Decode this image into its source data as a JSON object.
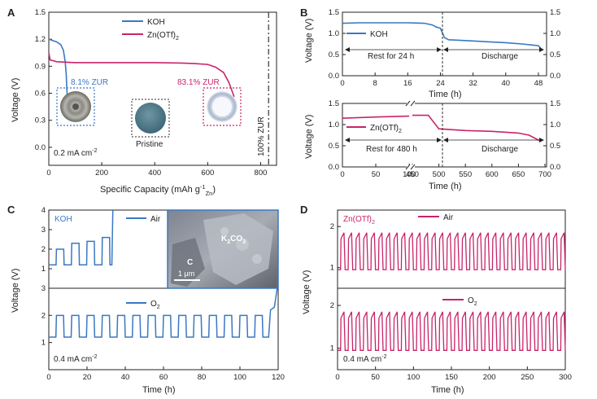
{
  "panels": {
    "a": "A",
    "b": "B",
    "c": "C",
    "d": "D"
  },
  "colors": {
    "koh": "#3a78c2",
    "zn": "#c8246a",
    "axis": "#222222"
  },
  "panel_a": {
    "legend": [
      "KOH",
      "Zn(OTf)2"
    ],
    "annotations": {
      "zur_koh": "8.1% ZUR",
      "zur_zn": "83.1% ZUR",
      "pristine": "Pristine",
      "current": "0.2 mA cm",
      "current_sup": "-2",
      "full_zur": "100% ZUR"
    },
    "xlabel_main": "Specific Capacity  (mAh g",
    "xlabel_sup": "-1",
    "xlabel_sub": "Zn",
    "ylabel": "Voltage (V)"
  },
  "panel_b": {
    "top_label": "KOH",
    "bot_label": "Zn(OTf)2",
    "rest_top": "Rest for 24 h",
    "rest_bot": "Rest for 480 h",
    "discharge": "Discharge",
    "xlabel": "Time (h)",
    "ylabel": "Voltage (V)"
  },
  "panel_c": {
    "label_koh": "KOH",
    "label_air": "Air",
    "label_o2": "O",
    "label_o2_sub": "2",
    "sem": {
      "c": "C",
      "k2co3": "K",
      "k2co3_sub1": "2",
      "k2co3_mid": "CO",
      "k2co3_sub2": "3",
      "scale": "1 μm"
    },
    "current": "0.4 mA cm",
    "current_sup": "-2",
    "xlabel": "Time (h)",
    "ylabel": "Voltage (V)"
  },
  "panel_d": {
    "label_zn": "Zn(OTf)",
    "label_zn_sub": "2",
    "label_air": "Air",
    "label_o2": "O",
    "label_o2_sub": "2",
    "current": "0.4 mA cm",
    "current_sup": "-2",
    "xlabel": "Time (h)",
    "ylabel": "Voltage (V)"
  },
  "chart_data": [
    {
      "panel": "A",
      "type": "line",
      "xlabel": "Specific Capacity (mAh g-1 Zn)",
      "ylabel": "Voltage (V)",
      "xlim": [
        0,
        860
      ],
      "ylim": [
        -0.2,
        1.5
      ],
      "xticks": [
        0,
        200,
        400,
        600,
        800
      ],
      "yticks": [
        0.0,
        0.3,
        0.6,
        0.9,
        1.2,
        1.5
      ],
      "series": [
        {
          "name": "KOH",
          "x": [
            0,
            10,
            30,
            45,
            55,
            62,
            66,
            68,
            70
          ],
          "y": [
            1.2,
            1.19,
            1.17,
            1.14,
            1.08,
            0.95,
            0.8,
            0.65,
            0.55
          ]
        },
        {
          "name": "Zn(OTf)2",
          "x": [
            0,
            5,
            30,
            100,
            200,
            300,
            400,
            500,
            550,
            600,
            630,
            660,
            680,
            695,
            700
          ],
          "y": [
            1.05,
            0.97,
            0.95,
            0.94,
            0.94,
            0.94,
            0.94,
            0.935,
            0.93,
            0.92,
            0.89,
            0.83,
            0.72,
            0.6,
            0.56
          ]
        }
      ],
      "vline": {
        "x": 830,
        "label": "100% ZUR"
      }
    },
    {
      "panel": "B-top",
      "type": "line",
      "xlabel": "Time (h)",
      "ylabel": "Voltage (V)",
      "xlim": [
        0,
        50
      ],
      "ylim": [
        0,
        1.5
      ],
      "xticks": [
        0,
        8,
        16,
        24,
        32,
        40,
        48
      ],
      "yticks": [
        0,
        0.5,
        1.0,
        1.5
      ],
      "series": [
        {
          "name": "KOH",
          "x": [
            0,
            4,
            8,
            12,
            16,
            20,
            22,
            23,
            24,
            25,
            26,
            28,
            32,
            36,
            40,
            44,
            46,
            47,
            48,
            49
          ],
          "y": [
            1.24,
            1.25,
            1.25,
            1.25,
            1.25,
            1.24,
            1.2,
            1.15,
            1.12,
            0.9,
            0.85,
            0.84,
            0.82,
            0.8,
            0.78,
            0.75,
            0.73,
            0.72,
            0.71,
            0.6
          ]
        }
      ]
    },
    {
      "panel": "B-bottom",
      "type": "line",
      "xlabel": "Time (h)",
      "ylabel": "Voltage (V)",
      "xlim": [
        0,
        700
      ],
      "ylim": [
        0,
        1.5
      ],
      "xticks": [
        0,
        50,
        100,
        450,
        500,
        550,
        600,
        650,
        700
      ],
      "yticks": [
        0,
        0.5,
        1.0,
        1.5
      ],
      "series": [
        {
          "name": "Zn(OTf)2",
          "x": [
            0,
            50,
            100,
            450,
            480,
            500,
            550,
            600,
            650,
            670,
            690
          ],
          "y": [
            1.15,
            1.18,
            1.2,
            1.22,
            1.22,
            0.9,
            0.86,
            0.84,
            0.8,
            0.75,
            0.62
          ]
        }
      ]
    },
    {
      "panel": "C-top",
      "type": "line",
      "ylabel": "Voltage (V)",
      "ylim": [
        0,
        4
      ],
      "yticks": [
        1,
        2,
        3,
        4
      ],
      "series": [
        {
          "name": "KOH Air",
          "cycles": 4,
          "charge_v": [
            2.0,
            2.3,
            2.4,
            2.6
          ],
          "discharge_v": 1.2,
          "failure_time": 33
        }
      ]
    },
    {
      "panel": "C-bottom",
      "type": "line",
      "xlabel": "Time (h)",
      "ylabel": "Voltage (V)",
      "xlim": [
        0,
        120
      ],
      "ylim": [
        0,
        3
      ],
      "xticks": [
        0,
        20,
        40,
        60,
        80,
        100,
        120
      ],
      "yticks": [
        1,
        2,
        3
      ],
      "series": [
        {
          "name": "KOH O2",
          "cycle_period_h": 8,
          "charge_v": 2.0,
          "discharge_v": 1.2,
          "end_rise_v": 3.0
        }
      ]
    },
    {
      "panel": "D-top",
      "type": "line",
      "ylabel": "Voltage (V)",
      "ylim": [
        0.5,
        2.4
      ],
      "yticks": [
        1,
        2
      ],
      "series": [
        {
          "name": "Zn(OTf)2 Air",
          "cycle_period_h": 10,
          "charge_v": 1.85,
          "discharge_v": 0.95
        }
      ]
    },
    {
      "panel": "D-bottom",
      "type": "line",
      "xlabel": "Time (h)",
      "ylabel": "Voltage (V)",
      "xlim": [
        0,
        300
      ],
      "ylim": [
        0.5,
        2.4
      ],
      "xticks": [
        0,
        50,
        100,
        150,
        200,
        250,
        300
      ],
      "yticks": [
        1,
        2
      ],
      "series": [
        {
          "name": "Zn(OTf)2 O2",
          "cycle_period_h": 10,
          "charge_v": 1.85,
          "discharge_v": 0.95
        }
      ]
    }
  ]
}
